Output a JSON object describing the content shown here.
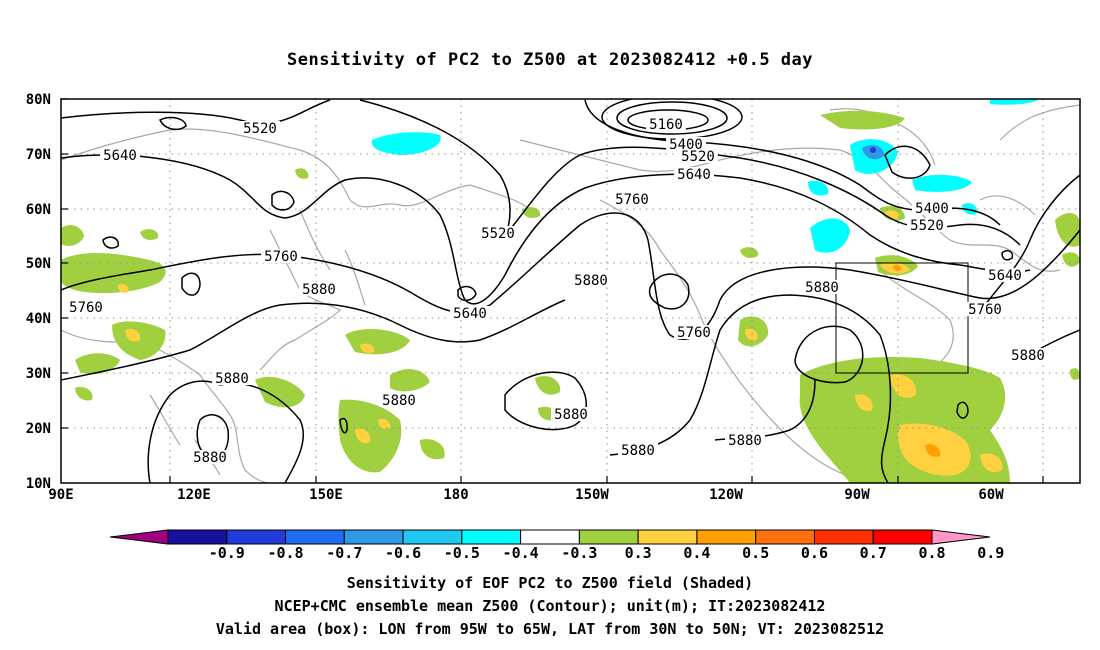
{
  "title": "Sensitivity of PC2 to Z500 at 2023082412 +0.5 day",
  "lat_labels": [
    "80N",
    "70N",
    "60N",
    "50N",
    "40N",
    "30N",
    "20N",
    "10N"
  ],
  "lon_labels": [
    "90E",
    "120E",
    "150E",
    "180",
    "150W",
    "120W",
    "90W",
    "60W"
  ],
  "contours": [
    {
      "label": "5160",
      "cls": "c5160"
    },
    {
      "label": "5400",
      "cls": "c5400"
    },
    {
      "label": "5520",
      "cls": "c5520"
    },
    {
      "label": "5640",
      "cls": "c5640"
    },
    {
      "label": "5760",
      "cls": "c5760"
    },
    {
      "label": "5880",
      "cls": "c5880"
    }
  ],
  "colorbar": {
    "levels": [
      "-0.9",
      "-0.8",
      "-0.7",
      "-0.6",
      "-0.5",
      "-0.4",
      "-0.3",
      "0.3",
      "0.4",
      "0.5",
      "0.6",
      "0.7",
      "0.8",
      "0.9"
    ],
    "colors": [
      "#a00080",
      "#1a10a0",
      "#1f3cd8",
      "#1e6cf0",
      "#2e9ae6",
      "#20c8f0",
      "#00ffff",
      "#ffffff",
      "#a0d040",
      "#ffd040",
      "#ffa000",
      "#ff7010",
      "#ff3000",
      "#ff0000",
      "#ff98c8"
    ]
  },
  "box": {
    "lon_from": "95W",
    "lon_to": "65W",
    "lat_from": "30N",
    "lat_to": "50N"
  },
  "captions": [
    "Sensitivity of EOF PC2 to Z500 field (Shaded)",
    "NCEP+CMC ensemble mean Z500 (Contour); unit(m); IT:2023082412",
    "Valid area (box): LON from 95W to 65W, LAT from 30N to 50N; VT: 2023082512"
  ]
}
